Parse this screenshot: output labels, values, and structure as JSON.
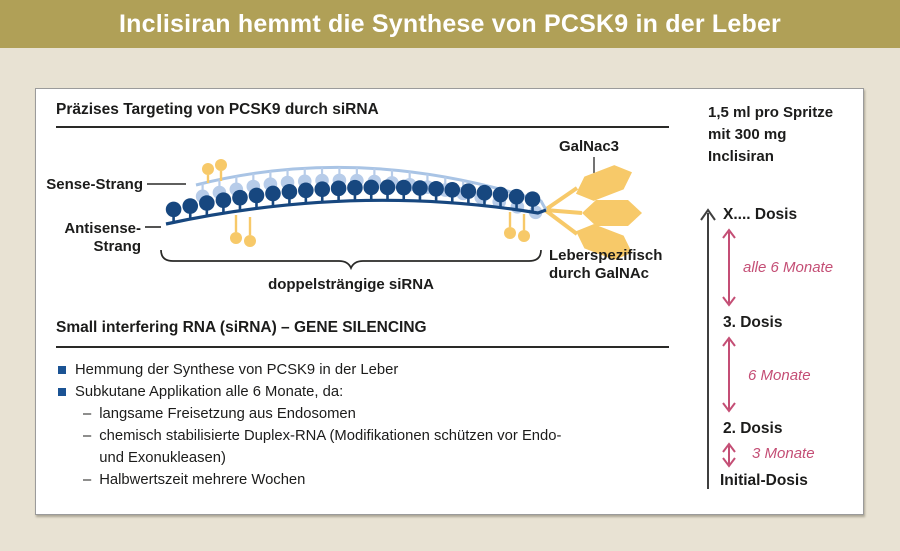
{
  "title": "Inclisiran hemmt die Synthese von PCSK9 in der Leber",
  "colors": {
    "header_gold": "#b0a057",
    "page_cream": "#e8e2d3",
    "panel_white": "#ffffff",
    "panel_border": "#9b9b9b",
    "navy_strand": "#17477f",
    "light_blue_strand": "#b7cce9",
    "galnac_gold": "#f7c969",
    "interval_pink": "#c44e75",
    "bullet_blue": "#1b5394",
    "text_black": "#1c1c1b"
  },
  "section1": {
    "heading": "Präzises Targeting von PCSK9 durch siRNA",
    "labels": {
      "sense": "Sense-Strang",
      "antisense_l1": "Antisense-",
      "antisense_l2": "Strang",
      "galnac3": "GalNac3",
      "double_strand": "doppelsträngige siRNA",
      "liver_l1": "Leberspezifisch",
      "liver_l2": "durch GalNAc"
    },
    "strand": {
      "sense_bead_count": 20,
      "antisense_bead_count": 23
    }
  },
  "section2": {
    "heading": "Small interfering RNA (siRNA) – GENE SILENCING",
    "dash_marker": "–",
    "bullets": [
      {
        "text": "Hemmung der Synthese von PCSK9 in der Leber"
      },
      {
        "text": "Subkutane Applikation alle 6 Monate, da:",
        "subitems": [
          "langsame Freisetzung aus Endosomen",
          "chemisch stabilisierte Duplex-RNA (Modifikationen schützen vor Endo-\nund Exonukleasen)",
          "Halbwertszeit mehrere Wochen"
        ]
      }
    ]
  },
  "dosing": {
    "syringe_info": "1,5 ml pro Spritze\nmit 300 mg\nInclisiran",
    "doses": {
      "x": "X.... Dosis",
      "third": "3. Dosis",
      "second": "2. Dosis",
      "initial": "Initial-Dosis"
    },
    "intervals": {
      "top": "alle 6 Monate",
      "middle": "6 Monate",
      "bottom": "3 Monate"
    }
  }
}
